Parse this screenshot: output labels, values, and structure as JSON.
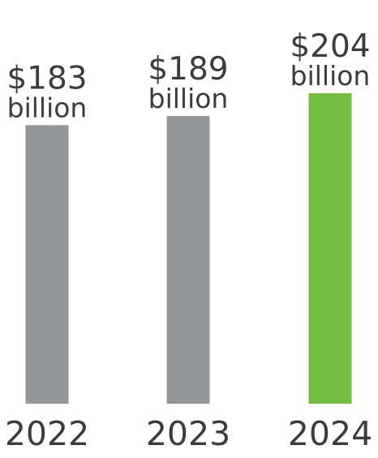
{
  "chart_data": {
    "type": "bar",
    "categories": [
      "2022",
      "2023",
      "2024"
    ],
    "values": [
      183,
      189,
      204
    ],
    "data_labels": [
      "$183",
      "$189",
      "$204"
    ],
    "unit_label": "billion",
    "ylim": [
      0,
      204
    ],
    "grid": false,
    "legend": "none",
    "colors": [
      "#939598",
      "#939598",
      "#76bd43"
    ]
  }
}
